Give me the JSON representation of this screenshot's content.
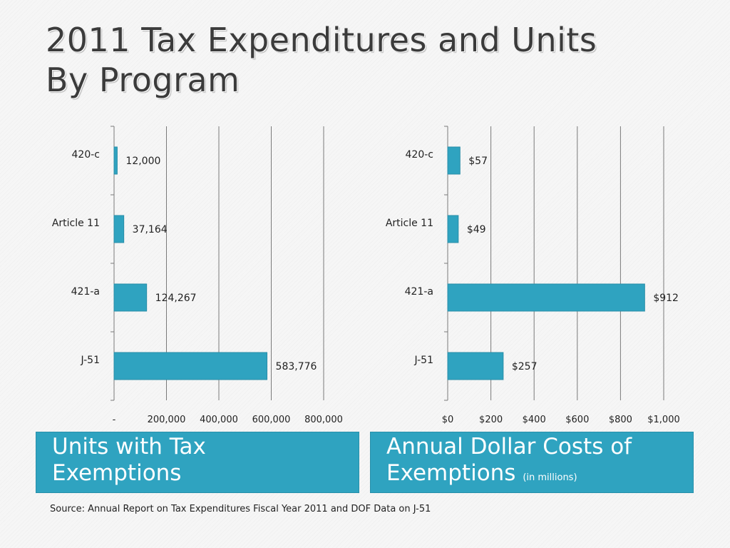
{
  "title_line1": "2011 Tax Expenditures and Units",
  "title_line2": "By Program",
  "bar_color": "#2fa3c0",
  "chart_data": [
    {
      "type": "bar",
      "orientation": "horizontal",
      "categories": [
        "420-c",
        "Article 11",
        "421-a",
        "J-51"
      ],
      "values": [
        12000,
        37164,
        124267,
        583776
      ],
      "value_labels": [
        "12,000",
        "37,164",
        "124,267",
        "583,776"
      ],
      "xlim": [
        0,
        800000
      ],
      "x_ticks": [
        0,
        200000,
        400000,
        600000,
        800000
      ],
      "x_tick_labels": [
        "-",
        "200,000",
        "400,000",
        "600,000",
        "800,000"
      ],
      "grid": true,
      "caption": "Units with Tax Exemptions",
      "caption_line1": "Units with Tax",
      "caption_line2": "Exemptions"
    },
    {
      "type": "bar",
      "orientation": "horizontal",
      "categories": [
        "420-c",
        "Article 11",
        "421-a",
        "J-51"
      ],
      "values": [
        57,
        49,
        912,
        257
      ],
      "value_labels": [
        "$57",
        "$49",
        "$912",
        "$257"
      ],
      "xlim": [
        0,
        1000
      ],
      "x_ticks": [
        0,
        200,
        400,
        600,
        800,
        1000
      ],
      "x_tick_labels": [
        "$0",
        "$200",
        "$400",
        "$600",
        "$800",
        "$1,000"
      ],
      "grid": true,
      "caption": "Annual Dollar Costs of Exemptions (in millions)",
      "caption_line1": "Annual Dollar Costs of",
      "caption_line2": "Exemptions",
      "caption_note": "(in millions)"
    }
  ],
  "source": "Source: Annual Report on Tax Expenditures Fiscal Year 2011 and DOF Data on J-51"
}
